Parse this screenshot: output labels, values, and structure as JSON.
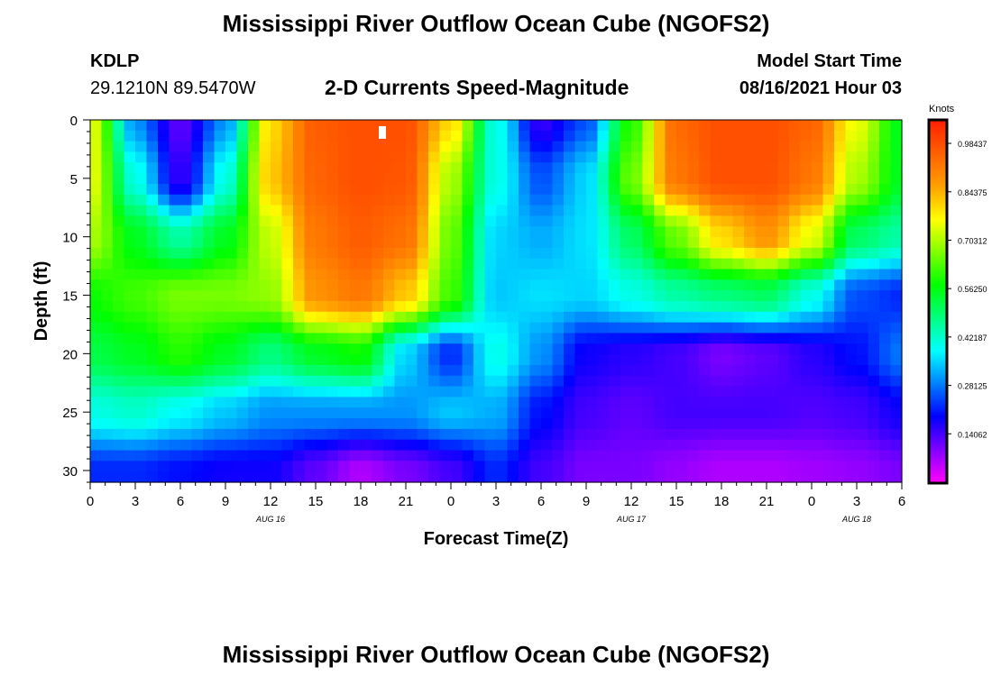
{
  "header": {
    "title": "Mississippi River Outflow Ocean Cube (NGOFS2)",
    "station": "KDLP",
    "coords": "29.1210N  89.5470W",
    "subtitle": "2-D Currents Speed-Magnitude",
    "model_label": "Model Start Time",
    "model_time": "08/16/2021 Hour 03"
  },
  "footer": {
    "title": "Mississippi River Outflow Ocean Cube (NGOFS2)"
  },
  "chart_data": {
    "type": "heatmap",
    "xlabel": "Forecast Time(Z)",
    "ylabel": "Depth (ft)",
    "x_tick_labels": [
      "0",
      "3",
      "6",
      "9",
      "12",
      "15",
      "18",
      "21",
      "0",
      "3",
      "6",
      "9",
      "12",
      "15",
      "18",
      "21",
      "0",
      "3",
      "6"
    ],
    "x_range_hours": [
      0,
      54
    ],
    "date_labels": [
      {
        "hour": 12,
        "text": "AUG 16"
      },
      {
        "hour": 36,
        "text": "AUG 17"
      },
      {
        "hour": 51,
        "text": "AUG 18"
      }
    ],
    "y_ticks": [
      0,
      5,
      10,
      15,
      20,
      25,
      30
    ],
    "ylim": [
      0,
      31
    ],
    "y_reversed": true,
    "colorbar": {
      "title": "Knots",
      "ticks": [
        "0.98437",
        "0.84375",
        "0.70312",
        "0.56250",
        "0.42187",
        "0.28125",
        "0.14062"
      ],
      "range": [
        0,
        1.05
      ]
    },
    "colormap": [
      "#ff00ff",
      "#8000ff",
      "#0000ff",
      "#0080ff",
      "#00ffff",
      "#00ff80",
      "#00ff00",
      "#80ff00",
      "#ffff00",
      "#ffa000",
      "#ff6000",
      "#ff2000"
    ],
    "approx_field": {
      "description": "speed (knots) vs hour (columns) and depth (rows)",
      "hours": [
        0,
        3,
        6,
        9,
        12,
        15,
        18,
        21,
        24,
        27,
        30,
        33,
        36,
        39,
        42,
        45,
        48,
        51,
        54
      ],
      "depths": [
        0,
        5,
        10,
        15,
        20,
        25,
        30
      ],
      "values": [
        [
          0.75,
          0.3,
          0.12,
          0.3,
          0.8,
          0.96,
          0.98,
          0.98,
          0.8,
          0.4,
          0.15,
          0.25,
          0.6,
          0.94,
          0.98,
          0.98,
          0.95,
          0.75,
          0.55
        ],
        [
          0.75,
          0.4,
          0.15,
          0.4,
          0.82,
          0.95,
          0.98,
          0.97,
          0.7,
          0.4,
          0.25,
          0.35,
          0.65,
          0.92,
          0.98,
          0.98,
          0.92,
          0.7,
          0.55
        ],
        [
          0.7,
          0.55,
          0.45,
          0.55,
          0.72,
          0.92,
          0.96,
          0.93,
          0.65,
          0.35,
          0.32,
          0.36,
          0.5,
          0.65,
          0.8,
          0.88,
          0.75,
          0.5,
          0.45
        ],
        [
          0.58,
          0.62,
          0.66,
          0.66,
          0.68,
          0.88,
          0.92,
          0.82,
          0.62,
          0.34,
          0.36,
          0.35,
          0.4,
          0.45,
          0.48,
          0.5,
          0.4,
          0.25,
          0.22
        ],
        [
          0.52,
          0.55,
          0.6,
          0.55,
          0.48,
          0.55,
          0.58,
          0.35,
          0.22,
          0.4,
          0.3,
          0.18,
          0.16,
          0.14,
          0.1,
          0.12,
          0.16,
          0.2,
          0.28
        ],
        [
          0.4,
          0.42,
          0.38,
          0.34,
          0.3,
          0.3,
          0.3,
          0.3,
          0.34,
          0.32,
          0.2,
          0.14,
          0.12,
          0.14,
          0.14,
          0.14,
          0.13,
          0.14,
          0.18
        ],
        [
          0.22,
          0.22,
          0.2,
          0.18,
          0.18,
          0.12,
          0.06,
          0.1,
          0.14,
          0.22,
          0.14,
          0.1,
          0.1,
          0.08,
          0.06,
          0.06,
          0.07,
          0.08,
          0.1
        ]
      ]
    }
  }
}
